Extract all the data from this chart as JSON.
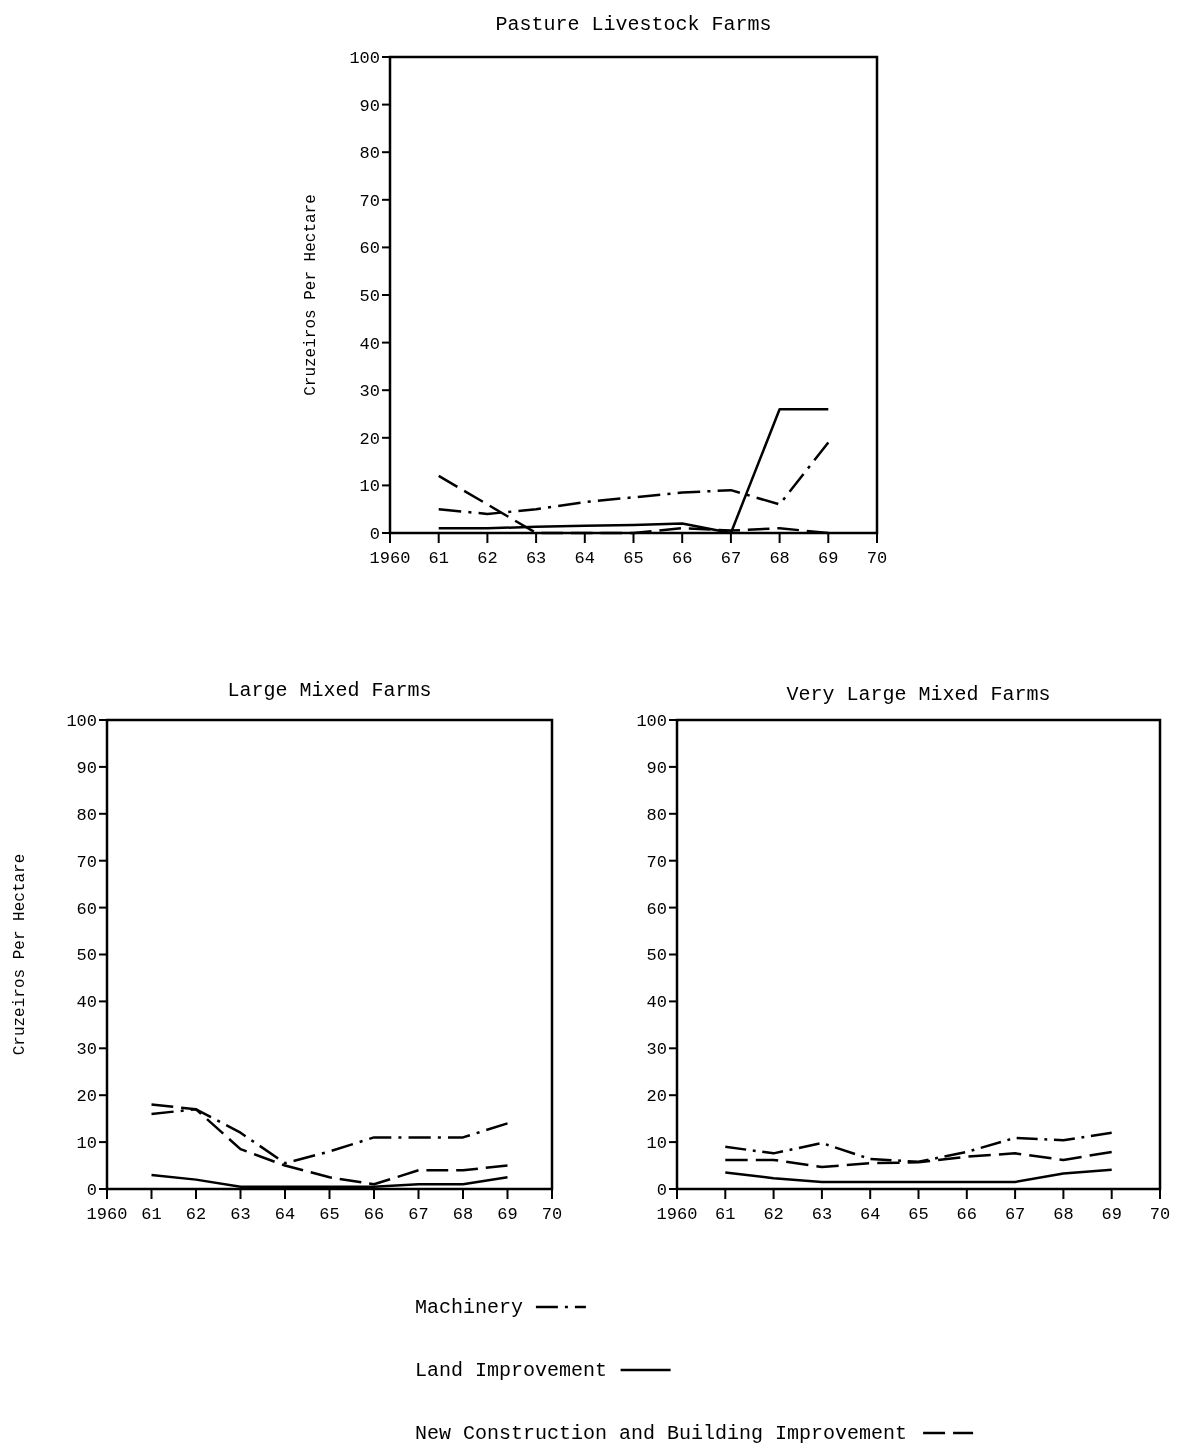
{
  "chart_data": [
    {
      "type": "line",
      "title": "Pasture Livestock Farms",
      "ylabel": "Cruzeiros Per Hectare",
      "x": [
        1961,
        1962,
        1963,
        1964,
        1965,
        1966,
        1967,
        1968,
        1969
      ],
      "xlim": [
        1960,
        1970
      ],
      "ylim": [
        0,
        100
      ],
      "xticks": [
        {
          "value": 1960,
          "label": "1960"
        },
        {
          "value": 1961,
          "label": "61"
        },
        {
          "value": 1962,
          "label": "62"
        },
        {
          "value": 1963,
          "label": "63"
        },
        {
          "value": 1964,
          "label": "64"
        },
        {
          "value": 1965,
          "label": "65"
        },
        {
          "value": 1966,
          "label": "66"
        },
        {
          "value": 1967,
          "label": "67"
        },
        {
          "value": 1968,
          "label": "68"
        },
        {
          "value": 1969,
          "label": "69"
        },
        {
          "value": 1970,
          "label": "70"
        }
      ],
      "yticks": [
        0,
        10,
        20,
        30,
        40,
        50,
        60,
        70,
        80,
        90,
        100
      ],
      "grid": false,
      "marker": "none",
      "series": [
        {
          "color": "#000000",
          "line_style": "dashdot",
          "values": [
            5,
            4,
            5,
            6.5,
            7.5,
            8.5,
            9,
            6,
            19
          ]
        },
        {
          "color": "#000000",
          "line_style": "solid",
          "values": [
            1,
            1,
            1.3,
            1.5,
            1.7,
            2,
            0,
            26,
            26
          ]
        },
        {
          "color": "#000000",
          "line_style": "dashed",
          "values": [
            12,
            6,
            0,
            0,
            0,
            1,
            0.5,
            1,
            0
          ]
        }
      ]
    },
    {
      "type": "line",
      "title": "Large Mixed Farms",
      "ylabel": "Cruzeiros Per Hectare",
      "x": [
        1961,
        1962,
        1963,
        1964,
        1965,
        1966,
        1967,
        1968,
        1969
      ],
      "xlim": [
        1960,
        1970
      ],
      "ylim": [
        0,
        100
      ],
      "xticks": [
        {
          "value": 1960,
          "label": "1960"
        },
        {
          "value": 1961,
          "label": "61"
        },
        {
          "value": 1962,
          "label": "62"
        },
        {
          "value": 1963,
          "label": "63"
        },
        {
          "value": 1964,
          "label": "64"
        },
        {
          "value": 1965,
          "label": "65"
        },
        {
          "value": 1966,
          "label": "66"
        },
        {
          "value": 1967,
          "label": "67"
        },
        {
          "value": 1968,
          "label": "68"
        },
        {
          "value": 1969,
          "label": "69"
        },
        {
          "value": 1970,
          "label": "70"
        }
      ],
      "yticks": [
        0,
        10,
        20,
        30,
        40,
        50,
        60,
        70,
        80,
        90,
        100
      ],
      "grid": false,
      "marker": "none",
      "series": [
        {
          "color": "#000000",
          "line_style": "dashdot",
          "values": [
            16,
            17,
            12,
            5.5,
            8,
            11,
            11,
            11,
            14
          ]
        },
        {
          "color": "#000000",
          "line_style": "solid",
          "values": [
            3,
            2,
            0.5,
            0.5,
            0.5,
            0.5,
            1,
            1,
            2.5
          ]
        },
        {
          "color": "#000000",
          "line_style": "dashed",
          "values": [
            18,
            17,
            8.5,
            5,
            2.5,
            1,
            4,
            4,
            5
          ]
        }
      ]
    },
    {
      "type": "line",
      "title": "Very Large Mixed Farms",
      "x": [
        1961,
        1962,
        1963,
        1964,
        1965,
        1966,
        1967,
        1968,
        1969
      ],
      "xlim": [
        1960,
        1970
      ],
      "ylim": [
        0,
        100
      ],
      "xticks": [
        {
          "value": 1960,
          "label": "1960"
        },
        {
          "value": 1961,
          "label": "61"
        },
        {
          "value": 1962,
          "label": "62"
        },
        {
          "value": 1963,
          "label": "63"
        },
        {
          "value": 1964,
          "label": "64"
        },
        {
          "value": 1965,
          "label": "65"
        },
        {
          "value": 1966,
          "label": "66"
        },
        {
          "value": 1967,
          "label": "67"
        },
        {
          "value": 1968,
          "label": "68"
        },
        {
          "value": 1969,
          "label": "69"
        },
        {
          "value": 1970,
          "label": "70"
        }
      ],
      "yticks": [
        0,
        10,
        20,
        30,
        40,
        50,
        60,
        70,
        80,
        90,
        100
      ],
      "grid": false,
      "marker": "none",
      "legend": "bottom",
      "series": [
        {
          "name": "Machinery",
          "color": "#000000",
          "line_style": "dashdot",
          "values": [
            9,
            7.6,
            9.8,
            6.4,
            5.8,
            7.9,
            10.9,
            10.4,
            12
          ]
        },
        {
          "name": "Land Improvement",
          "color": "#000000",
          "line_style": "solid",
          "values": [
            3.5,
            2.3,
            1.5,
            1.5,
            1.5,
            1.5,
            1.5,
            3.3,
            4.1
          ]
        },
        {
          "name": "New Construction and Building Improvement",
          "color": "#000000",
          "line_style": "dashed",
          "values": [
            6.2,
            6.2,
            4.7,
            5.5,
            5.7,
            6.9,
            7.6,
            6.2,
            7.9
          ]
        }
      ]
    }
  ]
}
